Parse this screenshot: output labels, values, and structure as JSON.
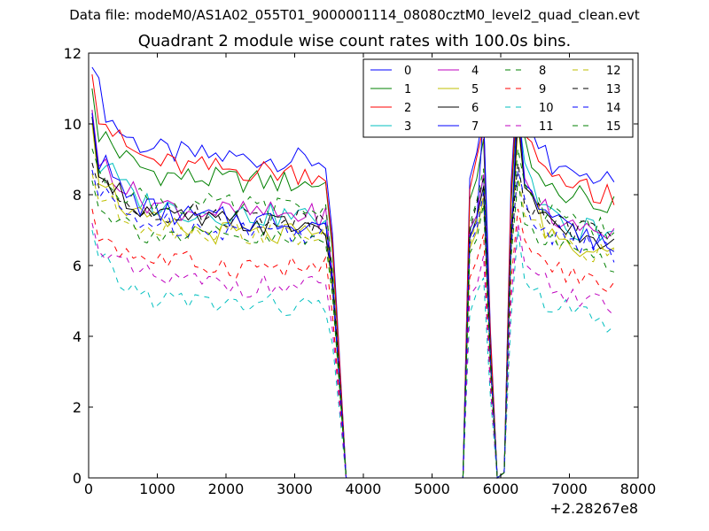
{
  "header": {
    "suptitle": "Data file: modeM0/AS1A02_055T01_9000001114_08080cztM0_level2_quad_clean.evt"
  },
  "chart_data": {
    "type": "line",
    "title": "Quadrant 2 module wise count rates with 100.0s bins.",
    "xlabel": "",
    "ylabel": "",
    "x_offset_label": "+2.28267e8",
    "xlim": [
      0,
      8000
    ],
    "ylim": [
      0,
      12
    ],
    "xticks": [
      0,
      1000,
      2000,
      3000,
      4000,
      5000,
      6000,
      7000,
      8000
    ],
    "yticks": [
      0,
      2,
      4,
      6,
      8,
      10,
      12
    ],
    "grid": false,
    "legend": {
      "position": "top-right",
      "columns": 4
    },
    "series": [
      {
        "name": "0",
        "color": "#0000ff",
        "style": "solid",
        "base": 9.2,
        "start": 11.6,
        "p2": 11.3
      },
      {
        "name": "1",
        "color": "#008000",
        "style": "solid",
        "base": 8.55,
        "start": 11.0,
        "p2": 9.5
      },
      {
        "name": "2",
        "color": "#ff0000",
        "style": "solid",
        "base": 8.85,
        "start": 11.4,
        "p2": 10.0
      },
      {
        "name": "3",
        "color": "#00bfbf",
        "style": "solid",
        "base": 7.6,
        "start": 10.4,
        "p2": 8.6
      },
      {
        "name": "4",
        "color": "#bf00bf",
        "style": "solid",
        "base": 7.65,
        "start": 10.4,
        "p2": 8.8
      },
      {
        "name": "5",
        "color": "#bfbf00",
        "style": "solid",
        "base": 7.05,
        "start": 10.0,
        "p2": 8.3
      },
      {
        "name": "6",
        "color": "#000000",
        "style": "solid",
        "base": 7.35,
        "start": 10.2,
        "p2": 8.5
      },
      {
        "name": "7",
        "color": "#0000ff",
        "style": "solid",
        "base": 7.45,
        "start": 10.3,
        "p2": 8.7
      },
      {
        "name": "8",
        "color": "#008000",
        "style": "dashed",
        "base": 7.8,
        "start": 9.3,
        "p2": 8.7
      },
      {
        "name": "9",
        "color": "#ff0000",
        "style": "dashed",
        "base": 6.15,
        "start": 7.6,
        "p2": 6.7
      },
      {
        "name": "10",
        "color": "#00bfbf",
        "style": "dashed",
        "base": 5.05,
        "start": 7.0,
        "p2": 6.2
      },
      {
        "name": "11",
        "color": "#bf00bf",
        "style": "dashed",
        "base": 5.6,
        "start": 7.2,
        "p2": 6.4
      },
      {
        "name": "12",
        "color": "#bfbf00",
        "style": "dashed",
        "base": 7.1,
        "start": 8.6,
        "p2": 7.8
      },
      {
        "name": "13",
        "color": "#000000",
        "style": "dashed",
        "base": 7.55,
        "start": 8.9,
        "p2": 8.2
      },
      {
        "name": "14",
        "color": "#0000ff",
        "style": "dashed",
        "base": 7.2,
        "start": 8.7,
        "p2": 7.9
      },
      {
        "name": "15",
        "color": "#008000",
        "style": "dashed",
        "base": 6.9,
        "start": 8.4,
        "p2": 7.6
      }
    ]
  }
}
